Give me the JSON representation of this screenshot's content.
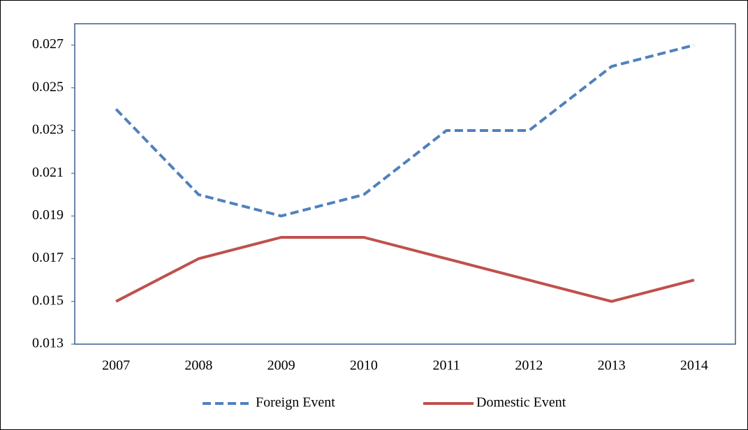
{
  "chart_data": {
    "type": "line",
    "categories": [
      "2007",
      "2008",
      "2009",
      "2010",
      "2011",
      "2012",
      "2013",
      "2014"
    ],
    "series": [
      {
        "name": "Foreign Event",
        "color": "#4f81bd",
        "dashed": true,
        "values": [
          0.024,
          0.02,
          0.019,
          0.02,
          0.023,
          0.023,
          0.026,
          0.027
        ]
      },
      {
        "name": "Domestic Event",
        "color": "#c0504d",
        "dashed": false,
        "values": [
          0.015,
          0.017,
          0.018,
          0.018,
          0.017,
          0.016,
          0.015,
          0.016
        ]
      }
    ],
    "ylim": [
      0.013,
      0.028
    ],
    "yticks": [
      0.013,
      0.015,
      0.017,
      0.019,
      0.021,
      0.023,
      0.025,
      0.027
    ],
    "grid": false,
    "legend": "bottom"
  }
}
